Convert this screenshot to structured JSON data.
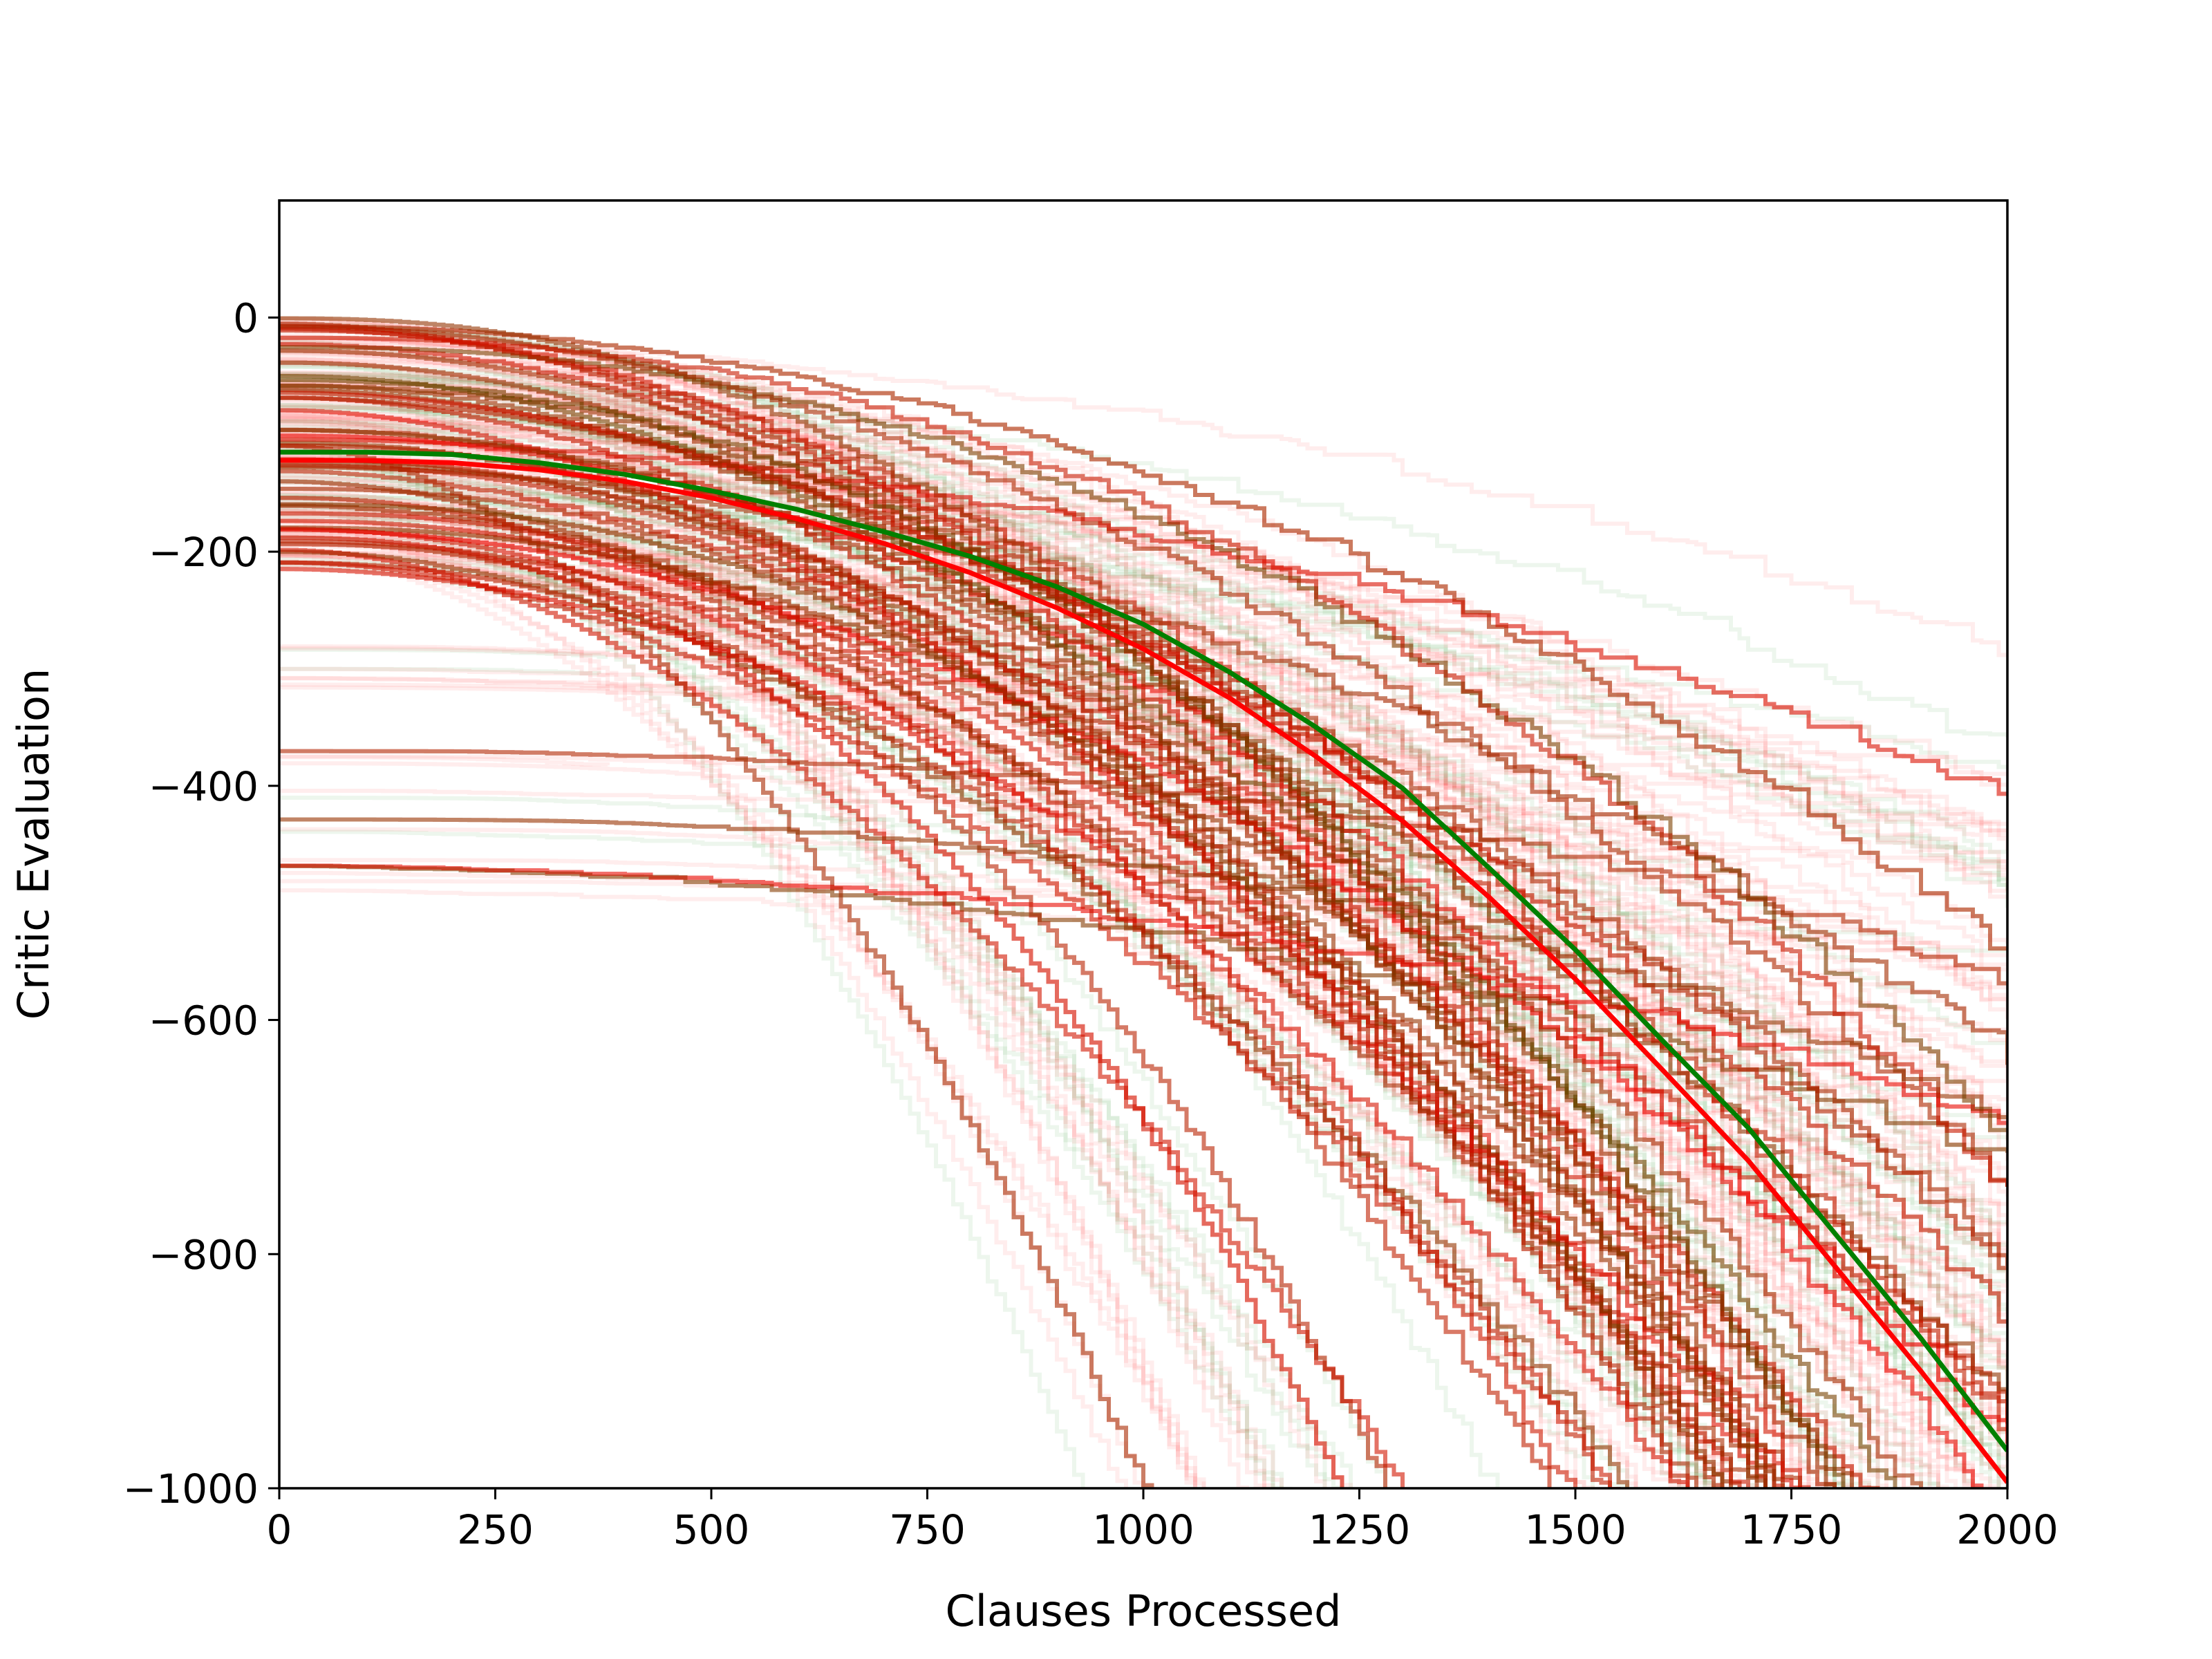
{
  "chart_data": {
    "type": "line",
    "title": "",
    "xlabel": "Clauses Processed",
    "ylabel": "Critic Evaluation",
    "xlim": [
      0,
      2000
    ],
    "ylim": [
      -1000,
      100
    ],
    "x_ticks": [
      0,
      250,
      500,
      750,
      1000,
      1250,
      1500,
      1750,
      2000
    ],
    "y_ticks": [
      0,
      -200,
      -400,
      -600,
      -800,
      -1000
    ],
    "x_tick_labels": [
      "0",
      "250",
      "500",
      "750",
      "1000",
      "1250",
      "1500",
      "1750",
      "2000"
    ],
    "y_tick_labels": [
      "0",
      "−200",
      "−400",
      "−600",
      "−800",
      "−1000"
    ],
    "grid": false,
    "legend": "none",
    "colors": {
      "red": "#ff0000",
      "green": "#008000",
      "axis": "#000000"
    },
    "trace_groups": [
      {
        "color": "#ff0000",
        "opacity": 0.07,
        "count": 600
      },
      {
        "color": "#008000",
        "opacity": 0.07,
        "count": 250
      }
    ],
    "series": [
      {
        "color": "#008000",
        "x": [
          0,
          100,
          200,
          300,
          400,
          500,
          600,
          700,
          800,
          900,
          1000,
          1100,
          1200,
          1300,
          1400,
          1500,
          1600,
          1700,
          1800,
          1900,
          2000
        ],
        "values": [
          -115,
          -115,
          -117,
          -124,
          -134,
          -148,
          -164,
          -183,
          -204,
          -230,
          -262,
          -303,
          -350,
          -402,
          -470,
          -540,
          -617,
          -692,
          -782,
          -872,
          -968
        ]
      },
      {
        "color": "#ff0000",
        "x": [
          0,
          100,
          200,
          300,
          400,
          500,
          600,
          700,
          800,
          900,
          1000,
          1100,
          1200,
          1300,
          1400,
          1500,
          1600,
          1700,
          1800,
          1900,
          2000
        ],
        "values": [
          -122,
          -122,
          -124,
          -130,
          -140,
          -154,
          -172,
          -193,
          -218,
          -248,
          -283,
          -325,
          -375,
          -430,
          -495,
          -565,
          -642,
          -720,
          -810,
          -900,
          -995
        ]
      }
    ]
  }
}
